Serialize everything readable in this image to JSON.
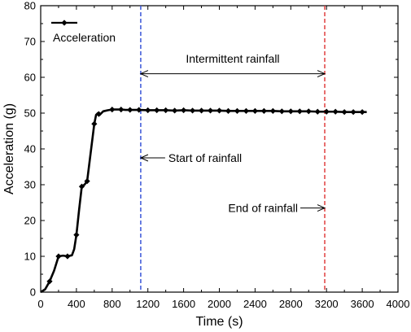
{
  "chart_data": {
    "type": "line",
    "xlabel": "Time (s)",
    "ylabel": "Acceleration (g)",
    "xlim": [
      0,
      4000
    ],
    "ylim": [
      0,
      80
    ],
    "xticks": [
      0,
      400,
      800,
      1200,
      1600,
      2000,
      2400,
      2800,
      3200,
      3600,
      4000
    ],
    "yticks": [
      0,
      10,
      20,
      30,
      40,
      50,
      60,
      70,
      80
    ],
    "grid": false,
    "legend": {
      "position": "top-left",
      "entries": [
        "Acceleration"
      ]
    },
    "series": [
      {
        "name": "Acceleration",
        "color": "#000000",
        "marker": "diamond",
        "x": [
          0,
          50,
          100,
          150,
          200,
          250,
          300,
          350,
          375,
          400,
          430,
          460,
          490,
          520,
          550,
          580,
          600,
          620,
          640,
          660,
          680,
          700,
          750,
          800,
          850,
          900,
          950,
          1000,
          1100,
          1200,
          1300,
          1400,
          1500,
          1600,
          1700,
          1800,
          1900,
          2000,
          2100,
          2200,
          2300,
          2400,
          2500,
          2600,
          2700,
          2800,
          2900,
          3000,
          3100,
          3200,
          3300,
          3400,
          3500,
          3600,
          3650
        ],
        "y": [
          0,
          0.8,
          3,
          6,
          10,
          10.2,
          10,
          10.3,
          12,
          16,
          23,
          29.5,
          30,
          31,
          37,
          43,
          47,
          49.5,
          50,
          49.5,
          50,
          50.5,
          50.8,
          51,
          51,
          51,
          50.9,
          50.9,
          50.9,
          50.8,
          50.8,
          50.8,
          50.7,
          50.8,
          50.7,
          50.7,
          50.7,
          50.7,
          50.6,
          50.6,
          50.6,
          50.6,
          50.6,
          50.6,
          50.5,
          50.5,
          50.5,
          50.5,
          50.4,
          50.4,
          50.4,
          50.3,
          50.3,
          50.3,
          50.3
        ]
      }
    ],
    "markers_x": [
      100,
      200,
      300,
      400,
      460,
      520,
      600,
      650,
      800,
      900,
      1000,
      1100,
      1200,
      1300,
      1400,
      1500,
      1600,
      1700,
      1800,
      1900,
      2000,
      2100,
      2200,
      2300,
      2400,
      2500,
      2600,
      2700,
      2800,
      2900,
      3000,
      3100,
      3200,
      3300,
      3400,
      3500,
      3600
    ],
    "vlines": [
      {
        "x": 1120,
        "color": "#3a55d8"
      },
      {
        "x": 3180,
        "color": "#e04040"
      }
    ],
    "annotations": [
      {
        "text": "Intermittent rainfall",
        "type": "double-arrow",
        "x1": 1120,
        "x2": 3180,
        "y": 61,
        "text_y": 65
      },
      {
        "text": "Start of rainfall",
        "type": "arrow-left",
        "x": 1120,
        "y": 37.5
      },
      {
        "text": "End of rainfall",
        "type": "arrow-right",
        "x": 3180,
        "y": 23.5
      }
    ]
  }
}
